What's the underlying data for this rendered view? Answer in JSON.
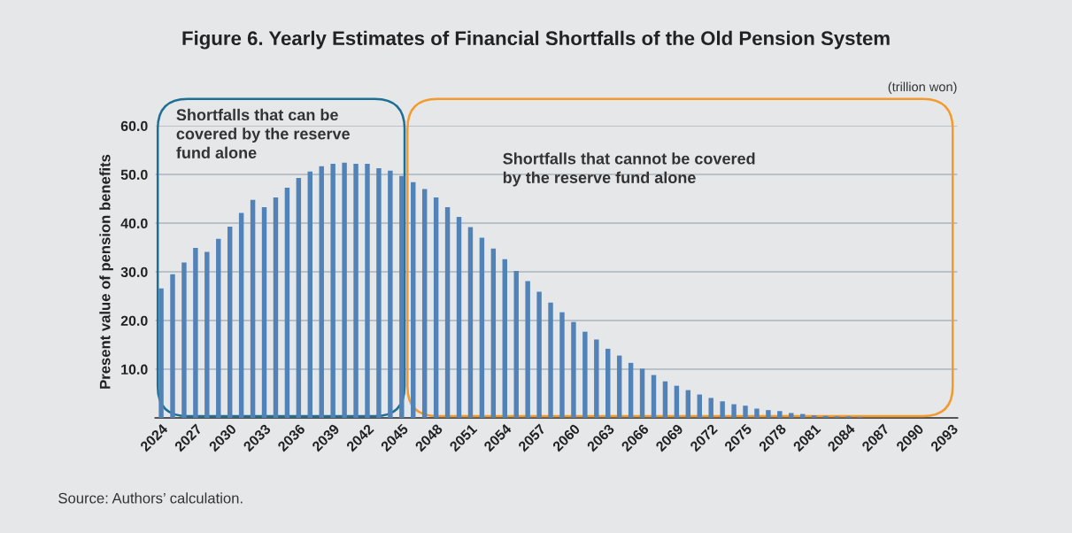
{
  "chart_data": {
    "type": "bar",
    "title": "Figure 6. Yearly Estimates of Financial Shortfalls of the Old Pension System",
    "ylabel": "Present value of pension benefits",
    "categories": [
      "2024",
      null,
      null,
      "2027",
      null,
      null,
      "2030",
      null,
      null,
      "2033",
      null,
      null,
      "2036",
      null,
      null,
      "2039",
      null,
      null,
      "2042",
      null,
      null,
      "2045",
      null,
      null,
      "2048",
      null,
      null,
      "2051",
      null,
      null,
      "2054",
      null,
      null,
      "2057",
      null,
      null,
      "2060",
      null,
      null,
      "2063",
      null,
      null,
      "2066",
      null,
      null,
      "2069",
      null,
      null,
      "2072",
      null,
      null,
      "2075",
      null,
      null,
      "2078",
      null,
      null,
      "2081",
      null,
      null,
      "2084",
      null,
      null,
      "2087",
      null,
      null,
      "2090",
      null,
      null,
      "2093"
    ],
    "values": [
      26.6,
      29.5,
      31.9,
      34.9,
      34.1,
      36.8,
      39.3,
      42.1,
      44.8,
      43.3,
      45.3,
      47.3,
      49.3,
      50.6,
      51.7,
      52.2,
      52.4,
      52.2,
      52.2,
      51.3,
      50.8,
      49.7,
      48.4,
      47.0,
      45.3,
      43.3,
      41.3,
      39.2,
      37.0,
      34.8,
      32.6,
      30.2,
      28.1,
      25.9,
      23.7,
      21.7,
      19.7,
      17.7,
      16.1,
      14.2,
      12.8,
      11.3,
      10.1,
      8.8,
      7.5,
      6.6,
      5.7,
      4.8,
      4.1,
      3.4,
      2.8,
      2.5,
      1.9,
      1.6,
      1.4,
      1.0,
      0.8,
      0.5,
      0.4,
      0.3,
      0.3,
      0.2,
      null,
      null,
      null,
      null,
      null,
      null,
      null,
      null
    ],
    "color": "#5183b8",
    "ylim": [
      0,
      60
    ],
    "yticks": [
      {
        "value": 10,
        "label": "10.0"
      },
      {
        "value": 20,
        "label": "20.0"
      },
      {
        "value": 30,
        "label": "30.0"
      },
      {
        "value": 40,
        "label": "40.0"
      },
      {
        "value": 50,
        "label": "50.0"
      },
      {
        "value": 60,
        "label": "60.0"
      }
    ],
    "grid": "y",
    "annotations": [
      "(trillion won)",
      "Shortfalls that can be\ncovered by the reserve\nfund alone",
      "Shortfalls that cannot be covered\nby the reserve fund alone",
      "Source: Authors’ calculation."
    ]
  }
}
